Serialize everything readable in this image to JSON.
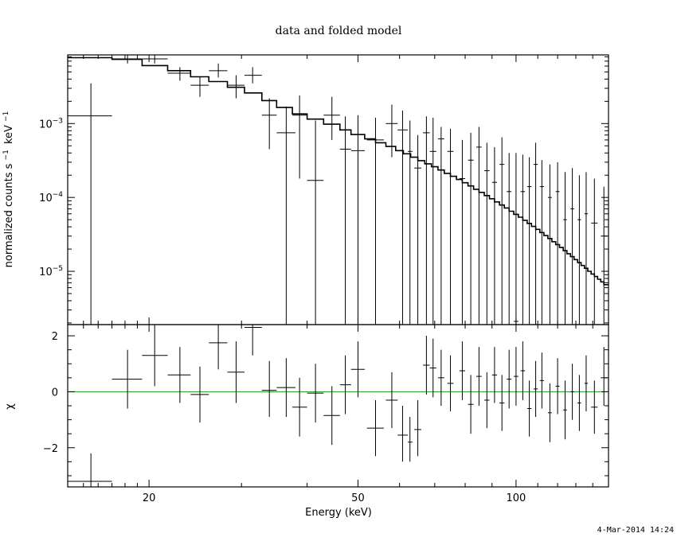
{
  "chart_data": [
    {
      "type": "line",
      "panel": "spectrum",
      "title": "data and folded model",
      "xlabel": "",
      "ylabel": "normalized counts s",
      "ylabel_unit": "keV",
      "ylabel_sup1": "−1",
      "ylabel_sup2": "−1",
      "xscale": "log",
      "yscale": "log",
      "xlim": [
        14,
        150
      ],
      "ylim": [
        1.9e-06,
        0.0085
      ],
      "yticks": [
        {
          "value": 0.001,
          "base": "10",
          "exp": "−3"
        },
        {
          "value": 0.0001,
          "base": "10",
          "exp": "−4"
        },
        {
          "value": 1e-05,
          "base": "10",
          "exp": "−5"
        }
      ],
      "series": [
        {
          "kind": "data_points",
          "points": [
            {
              "x": 15.5,
              "xlo": 14,
              "xhi": 17,
              "y": 0.00127,
              "ylo": 1.9e-06,
              "yhi": 0.0035
            },
            {
              "x": 18.2,
              "xlo": 17,
              "xhi": 19.4,
              "y": 0.0075,
              "ylo": 0.0065,
              "yhi": 0.0085
            },
            {
              "x": 20.5,
              "xlo": 19.4,
              "xhi": 21.7,
              "y": 0.0075,
              "ylo": 0.0065,
              "yhi": 0.0085
            },
            {
              "x": 22.9,
              "xlo": 21.7,
              "xhi": 24,
              "y": 0.0048,
              "ylo": 0.0038,
              "yhi": 0.0058
            },
            {
              "x": 25.0,
              "xlo": 24,
              "xhi": 26,
              "y": 0.0033,
              "ylo": 0.0023,
              "yhi": 0.0043
            },
            {
              "x": 27.1,
              "xlo": 26,
              "xhi": 28.2,
              "y": 0.0052,
              "ylo": 0.0042,
              "yhi": 0.0065
            },
            {
              "x": 29.3,
              "xlo": 28.2,
              "xhi": 30.4,
              "y": 0.0033,
              "ylo": 0.0022,
              "yhi": 0.0045
            },
            {
              "x": 31.5,
              "xlo": 30.4,
              "xhi": 32.8,
              "y": 0.0045,
              "ylo": 0.0035,
              "yhi": 0.0058
            },
            {
              "x": 33.9,
              "xlo": 32.8,
              "xhi": 35,
              "y": 0.0013,
              "ylo": 0.00045,
              "yhi": 0.0022
            },
            {
              "x": 36.5,
              "xlo": 35,
              "xhi": 38,
              "y": 0.00075,
              "ylo": 1.9e-06,
              "yhi": 0.0017
            },
            {
              "x": 38.7,
              "xlo": 37.5,
              "xhi": 40,
              "y": 0.0013,
              "ylo": 0.00018,
              "yhi": 0.0024
            },
            {
              "x": 41.5,
              "xlo": 40,
              "xhi": 43,
              "y": 0.00017,
              "ylo": 1.9e-06,
              "yhi": 0.0011
            },
            {
              "x": 44.6,
              "xlo": 43,
              "xhi": 46.2,
              "y": 0.0013,
              "ylo": 0.0006,
              "yhi": 0.0023
            },
            {
              "x": 47.3,
              "xlo": 46.2,
              "xhi": 48.5,
              "y": 0.00045,
              "ylo": 1.9e-06,
              "yhi": 0.00125
            },
            {
              "x": 50.0,
              "xlo": 48.5,
              "xhi": 51.5,
              "y": 0.00043,
              "ylo": 1.9e-06,
              "yhi": 0.0013
            },
            {
              "x": 54.0,
              "xlo": 52,
              "xhi": 56,
              "y": 0.0006,
              "ylo": 1.9e-06,
              "yhi": 0.0012
            },
            {
              "x": 58.0,
              "xlo": 56.5,
              "xhi": 59.5,
              "y": 0.001,
              "ylo": 0.00035,
              "yhi": 0.0018
            },
            {
              "x": 60.8,
              "xlo": 59.5,
              "xhi": 62.2,
              "y": 0.00082,
              "ylo": 1.9e-06,
              "yhi": 0.0015
            },
            {
              "x": 62.8,
              "xlo": 62.2,
              "xhi": 63.5,
              "y": 0.00042,
              "ylo": 1.9e-06,
              "yhi": 0.0011
            },
            {
              "x": 65.0,
              "xlo": 64,
              "xhi": 66,
              "y": 0.00025,
              "ylo": 1.9e-06,
              "yhi": 0.0007
            },
            {
              "x": 67.5,
              "xlo": 66.5,
              "xhi": 68.5,
              "y": 0.00075,
              "ylo": 1.9e-06,
              "yhi": 0.00125
            },
            {
              "x": 69.5,
              "xlo": 68.5,
              "xhi": 70.5,
              "y": 0.00042,
              "ylo": 1.9e-06,
              "yhi": 0.0012
            },
            {
              "x": 72.0,
              "xlo": 71,
              "xhi": 73,
              "y": 0.00062,
              "ylo": 1.9e-06,
              "yhi": 0.0009
            },
            {
              "x": 75.0,
              "xlo": 74,
              "xhi": 76,
              "y": 0.00042,
              "ylo": 1.9e-06,
              "yhi": 0.00085
            },
            {
              "x": 79.0,
              "xlo": 78,
              "xhi": 80,
              "y": 0.00018,
              "ylo": 1.9e-06,
              "yhi": 0.0006
            },
            {
              "x": 82.0,
              "xlo": 81,
              "xhi": 83,
              "y": 0.00032,
              "ylo": 1.9e-06,
              "yhi": 0.00075
            },
            {
              "x": 85.0,
              "xlo": 84,
              "xhi": 86,
              "y": 0.00048,
              "ylo": 1.9e-06,
              "yhi": 0.0009
            },
            {
              "x": 88.0,
              "xlo": 87,
              "xhi": 89,
              "y": 0.00023,
              "ylo": 1.9e-06,
              "yhi": 0.00055
            },
            {
              "x": 91.0,
              "xlo": 90,
              "xhi": 92,
              "y": 0.00016,
              "ylo": 1.9e-06,
              "yhi": 0.00048
            },
            {
              "x": 94.0,
              "xlo": 93,
              "xhi": 95,
              "y": 0.00028,
              "ylo": 1.9e-06,
              "yhi": 0.00065
            },
            {
              "x": 97.0,
              "xlo": 96,
              "xhi": 98,
              "y": 0.00012,
              "ylo": 1.9e-06,
              "yhi": 0.0004
            },
            {
              "x": 100.0,
              "xlo": 99,
              "xhi": 101,
              "y": 2.1e-06,
              "ylo": 1.9e-06,
              "yhi": 0.0004
            },
            {
              "x": 103.0,
              "xlo": 102,
              "xhi": 104,
              "y": 0.00012,
              "ylo": 1.9e-06,
              "yhi": 0.00038
            },
            {
              "x": 106.0,
              "xlo": 105,
              "xhi": 107,
              "y": 0.00014,
              "ylo": 1.9e-06,
              "yhi": 0.00035
            },
            {
              "x": 109.0,
              "xlo": 108,
              "xhi": 110,
              "y": 0.00028,
              "ylo": 1.9e-06,
              "yhi": 0.00055
            },
            {
              "x": 112.0,
              "xlo": 111,
              "xhi": 113,
              "y": 0.00014,
              "ylo": 1.9e-06,
              "yhi": 0.00032
            },
            {
              "x": 116.0,
              "xlo": 115,
              "xhi": 117,
              "y": 0.0001,
              "ylo": 1.9e-06,
              "yhi": 0.00028
            },
            {
              "x": 120.0,
              "xlo": 119,
              "xhi": 121,
              "y": 0.00012,
              "ylo": 1.9e-06,
              "yhi": 0.0003
            },
            {
              "x": 124.0,
              "xlo": 123,
              "xhi": 125,
              "y": 5e-05,
              "ylo": 1.9e-06,
              "yhi": 0.00022
            },
            {
              "x": 128.0,
              "xlo": 127,
              "xhi": 129,
              "y": 7e-05,
              "ylo": 1.9e-06,
              "yhi": 0.00025
            },
            {
              "x": 132.0,
              "xlo": 131,
              "xhi": 133,
              "y": 5e-05,
              "ylo": 1.9e-06,
              "yhi": 0.0002
            },
            {
              "x": 136.0,
              "xlo": 135,
              "xhi": 137,
              "y": 6e-05,
              "ylo": 1.9e-06,
              "yhi": 0.00022
            },
            {
              "x": 141.0,
              "xlo": 139,
              "xhi": 143,
              "y": 4.5e-05,
              "ylo": 1.9e-06,
              "yhi": 0.00018
            },
            {
              "x": 147.0,
              "xlo": 145,
              "xhi": 149,
              "y": 3e-05,
              "ylo": 1.9e-06,
              "yhi": 0.00014
            }
          ]
        },
        {
          "kind": "folded_model",
          "edges": [
            14,
            17,
            19.4,
            21.7,
            24,
            26,
            28.2,
            30.4,
            32.8,
            35,
            37.5,
            40,
            43,
            46.2,
            48.5,
            51.5,
            54,
            56.5,
            59,
            61,
            63,
            65,
            67,
            69,
            71,
            73,
            75,
            77,
            79,
            81,
            83,
            85,
            87,
            89,
            91,
            93,
            95,
            97,
            99,
            101,
            103,
            105,
            107,
            109,
            111,
            113,
            115,
            117,
            119,
            121,
            123,
            125,
            127,
            129,
            131,
            133,
            135,
            137,
            139,
            141,
            143,
            145,
            147,
            150
          ],
          "values": [
            0.0078,
            0.0074,
            0.0061,
            0.0052,
            0.0043,
            0.0037,
            0.0031,
            0.0026,
            0.00205,
            0.00165,
            0.00135,
            0.00115,
            0.00098,
            0.00082,
            0.00071,
            0.00062,
            0.00055,
            0.00049,
            0.00043,
            0.00039,
            0.00035,
            0.000315,
            0.000285,
            0.00026,
            0.000235,
            0.000212,
            0.000193,
            0.000175,
            0.000158,
            0.000143,
            0.000129,
            0.000117,
            0.000106,
            9.6e-05,
            8.7e-05,
            7.9e-05,
            7.2e-05,
            6.5e-05,
            5.9e-05,
            5.4e-05,
            4.9e-05,
            4.45e-05,
            4.05e-05,
            3.7e-05,
            3.35e-05,
            3.05e-05,
            2.78e-05,
            2.52e-05,
            2.3e-05,
            2.1e-05,
            1.9e-05,
            1.73e-05,
            1.58e-05,
            1.44e-05,
            1.31e-05,
            1.2e-05,
            1.1e-05,
            1e-05,
            9.2e-06,
            8.5e-06,
            7.8e-06,
            7.2e-06,
            6.6e-06
          ]
        }
      ]
    },
    {
      "type": "scatter",
      "panel": "residuals",
      "xlabel": "Energy (keV)",
      "ylabel": "χ",
      "xscale": "log",
      "xlim": [
        14,
        150
      ],
      "ylim": [
        -3.4,
        2.4
      ],
      "xticks": [
        20,
        50,
        100
      ],
      "yticks": [
        2,
        0,
        -2
      ],
      "ytick_labels": [
        "2",
        "0",
        "−2"
      ],
      "zero_line_color": "#00cc00",
      "points": [
        {
          "x": 15.5,
          "xlo": 14,
          "xhi": 17,
          "y": -3.2,
          "ylo": -3.4,
          "yhi": -2.2
        },
        {
          "x": 18.2,
          "xlo": 17,
          "xhi": 19.4,
          "y": 0.45,
          "ylo": -0.6,
          "yhi": 1.5
        },
        {
          "x": 20.5,
          "xlo": 19.4,
          "xhi": 21.7,
          "y": 1.3,
          "ylo": 0.2,
          "yhi": 2.4
        },
        {
          "x": 22.9,
          "xlo": 21.7,
          "xhi": 24,
          "y": 0.6,
          "ylo": -0.4,
          "yhi": 1.6
        },
        {
          "x": 25.0,
          "xlo": 24,
          "xhi": 26,
          "y": -0.1,
          "ylo": -1.1,
          "yhi": 0.9
        },
        {
          "x": 27.1,
          "xlo": 26,
          "xhi": 28.2,
          "y": 1.75,
          "ylo": 0.8,
          "yhi": 2.4
        },
        {
          "x": 29.3,
          "xlo": 28.2,
          "xhi": 30.4,
          "y": 0.7,
          "ylo": -0.4,
          "yhi": 1.8
        },
        {
          "x": 31.5,
          "xlo": 30.4,
          "xhi": 32.8,
          "y": 2.3,
          "ylo": 1.3,
          "yhi": 2.4
        },
        {
          "x": 33.9,
          "xlo": 32.8,
          "xhi": 35,
          "y": 0.05,
          "ylo": -0.9,
          "yhi": 1.1
        },
        {
          "x": 36.5,
          "xlo": 35,
          "xhi": 38,
          "y": 0.15,
          "ylo": -0.9,
          "yhi": 1.2
        },
        {
          "x": 38.7,
          "xlo": 37.5,
          "xhi": 40,
          "y": -0.55,
          "ylo": -1.6,
          "yhi": 0.5
        },
        {
          "x": 41.5,
          "xlo": 40,
          "xhi": 43,
          "y": -0.05,
          "ylo": -1.1,
          "yhi": 1.0
        },
        {
          "x": 44.6,
          "xlo": 43,
          "xhi": 46.2,
          "y": -0.85,
          "ylo": -1.9,
          "yhi": 0.2
        },
        {
          "x": 47.3,
          "xlo": 46.2,
          "xhi": 48.5,
          "y": 0.25,
          "ylo": -0.8,
          "yhi": 1.3
        },
        {
          "x": 50.0,
          "xlo": 48.5,
          "xhi": 51.5,
          "y": 0.8,
          "ylo": -0.2,
          "yhi": 1.8
        },
        {
          "x": 54.0,
          "xlo": 52,
          "xhi": 56,
          "y": -1.3,
          "ylo": -2.3,
          "yhi": -0.3
        },
        {
          "x": 58.0,
          "xlo": 56.5,
          "xhi": 59.5,
          "y": -0.3,
          "ylo": -1.3,
          "yhi": 0.7
        },
        {
          "x": 60.8,
          "xlo": 59.5,
          "xhi": 62.2,
          "y": -1.55,
          "ylo": -2.5,
          "yhi": -0.5
        },
        {
          "x": 62.8,
          "xlo": 62.2,
          "xhi": 63.5,
          "y": -1.8,
          "ylo": -2.5,
          "yhi": -0.9
        },
        {
          "x": 65.0,
          "xlo": 64,
          "xhi": 66,
          "y": -1.35,
          "ylo": -2.3,
          "yhi": -0.3
        },
        {
          "x": 67.5,
          "xlo": 66.5,
          "xhi": 68.5,
          "y": 0.95,
          "ylo": -0.1,
          "yhi": 2.0
        },
        {
          "x": 69.5,
          "xlo": 68.5,
          "xhi": 70.5,
          "y": 0.85,
          "ylo": -0.2,
          "yhi": 1.9
        },
        {
          "x": 72.0,
          "xlo": 71,
          "xhi": 73,
          "y": 0.5,
          "ylo": -0.5,
          "yhi": 1.5
        },
        {
          "x": 75.0,
          "xlo": 74,
          "xhi": 76,
          "y": 0.3,
          "ylo": -0.7,
          "yhi": 1.3
        },
        {
          "x": 79.0,
          "xlo": 78,
          "xhi": 80,
          "y": 0.75,
          "ylo": -0.3,
          "yhi": 1.8
        },
        {
          "x": 82.0,
          "xlo": 81,
          "xhi": 83,
          "y": -0.45,
          "ylo": -1.5,
          "yhi": 0.6
        },
        {
          "x": 85.0,
          "xlo": 84,
          "xhi": 86,
          "y": 0.55,
          "ylo": -0.5,
          "yhi": 1.6
        },
        {
          "x": 88.0,
          "xlo": 87,
          "xhi": 89,
          "y": -0.3,
          "ylo": -1.3,
          "yhi": 0.7
        },
        {
          "x": 91.0,
          "xlo": 90,
          "xhi": 92,
          "y": 0.6,
          "ylo": -0.4,
          "yhi": 1.6
        },
        {
          "x": 94.0,
          "xlo": 93,
          "xhi": 95,
          "y": -0.4,
          "ylo": -1.4,
          "yhi": 0.6
        },
        {
          "x": 97.0,
          "xlo": 96,
          "xhi": 98,
          "y": 0.45,
          "ylo": -0.6,
          "yhi": 1.5
        },
        {
          "x": 100.0,
          "xlo": 99,
          "xhi": 101,
          "y": 0.55,
          "ylo": -0.5,
          "yhi": 1.6
        },
        {
          "x": 103.0,
          "xlo": 102,
          "xhi": 104,
          "y": 0.75,
          "ylo": -0.3,
          "yhi": 1.8
        },
        {
          "x": 106.0,
          "xlo": 105,
          "xhi": 107,
          "y": -0.6,
          "ylo": -1.6,
          "yhi": 0.4
        },
        {
          "x": 109.0,
          "xlo": 108,
          "xhi": 110,
          "y": 0.1,
          "ylo": -0.9,
          "yhi": 1.1
        },
        {
          "x": 112.0,
          "xlo": 111,
          "xhi": 113,
          "y": 0.4,
          "ylo": -0.6,
          "yhi": 1.4
        },
        {
          "x": 116.0,
          "xlo": 115,
          "xhi": 117,
          "y": -0.75,
          "ylo": -1.8,
          "yhi": 0.3
        },
        {
          "x": 120.0,
          "xlo": 119,
          "xhi": 121,
          "y": 0.2,
          "ylo": -0.8,
          "yhi": 1.2
        },
        {
          "x": 124.0,
          "xlo": 123,
          "xhi": 125,
          "y": -0.65,
          "ylo": -1.7,
          "yhi": 0.4
        },
        {
          "x": 128.0,
          "xlo": 127,
          "xhi": 129,
          "y": 0.0,
          "ylo": -1.0,
          "yhi": 1.0
        },
        {
          "x": 132.0,
          "xlo": 131,
          "xhi": 133,
          "y": -0.4,
          "ylo": -1.4,
          "yhi": 0.6
        },
        {
          "x": 136.0,
          "xlo": 135,
          "xhi": 137,
          "y": 0.3,
          "ylo": -0.7,
          "yhi": 1.3
        },
        {
          "x": 141.0,
          "xlo": 139,
          "xhi": 143,
          "y": -0.55,
          "ylo": -1.5,
          "yhi": 0.4
        },
        {
          "x": 147.0,
          "xlo": 145,
          "xhi": 149,
          "y": 0.5,
          "ylo": -0.5,
          "yhi": 1.6
        }
      ]
    }
  ],
  "timestamp": "4-Mar-2014 14:24",
  "colors": {
    "ink": "#000000",
    "zero_line": "#00cc00",
    "background": "#ffffff"
  }
}
